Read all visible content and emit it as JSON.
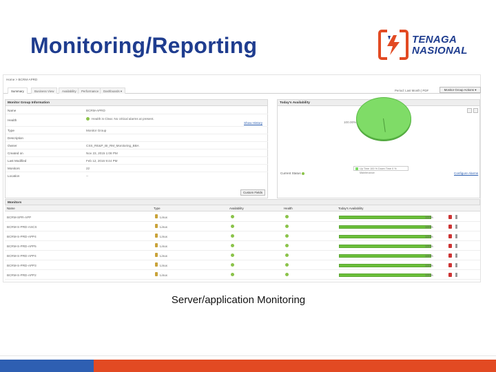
{
  "slide": {
    "title": "Monitoring/Reporting",
    "caption": "Server/application Monitoring"
  },
  "logo": {
    "line1": "TENAGA",
    "line2": "NASIONAL",
    "color_blue": "#1f3d8f",
    "color_red": "#e24a23"
  },
  "app": {
    "breadcrumb": "Home > BCRM-APRD",
    "tabs": [
      "Summary",
      "Business View",
      "Availability",
      "Performance",
      "Dashboards ▾"
    ],
    "tools_label": "Period: Last Month  |  PDF",
    "action_button": "Monitor Group Actions ▾",
    "info_panel": {
      "title": "Monitor Group Information",
      "rows": [
        {
          "label": "Name",
          "value": "BCRM-APRD"
        },
        {
          "label": "Health",
          "value": "Health is Clear. No critical alarms at present."
        },
        {
          "label": "Type",
          "value": "Monitor Group"
        },
        {
          "label": "Description",
          "value": ""
        },
        {
          "label": "Owner",
          "value": "CSS_RE&P_BI_RM_Monitoring_BBA"
        },
        {
          "label": "Created on",
          "value": "Nov 23, 2015 1:08 PM"
        },
        {
          "label": "Last Modified",
          "value": "Feb 12, 2016 9:44 PM"
        },
        {
          "label": "Monitors",
          "value": "22"
        },
        {
          "label": "Location",
          "value": "--"
        }
      ],
      "show_history_link": "Show History",
      "custom_fields_button": "Custom Fields"
    },
    "availability_panel": {
      "title": "Today's Availability",
      "pie_label": "100.00%",
      "legend": "Up Time  100 % Down Time 0 %  Maintenance",
      "current_status_label": "Current Status",
      "configure_alarms_link": "Configure Alarms"
    },
    "monitors": {
      "title": "Monitors",
      "columns": [
        "Name",
        "Type",
        "Availability",
        "Health",
        "Today's Availability"
      ],
      "rows": [
        {
          "name": "BCRM-SPR-APP",
          "type": "Linux",
          "pct": "100%",
          "availability": 100
        },
        {
          "name": "BCRM-S-PRD-ASCS",
          "type": "Linux",
          "pct": "100%",
          "availability": 100
        },
        {
          "name": "BCRM-S-PRD-APP4",
          "type": "Linux",
          "pct": "100%",
          "availability": 100
        },
        {
          "name": "BCRM-S-PRD-APP5",
          "type": "Linux",
          "pct": "100%",
          "availability": 100
        },
        {
          "name": "BCRM-S-PRD-APP4",
          "type": "Linux",
          "pct": "100%",
          "availability": 100
        },
        {
          "name": "BCRM-S-PRD-APP3",
          "type": "Linux",
          "pct": "100%",
          "availability": 100
        },
        {
          "name": "BCRM-S-PRD-APP2",
          "type": "Linux",
          "pct": "100%",
          "availability": 100
        }
      ]
    }
  }
}
